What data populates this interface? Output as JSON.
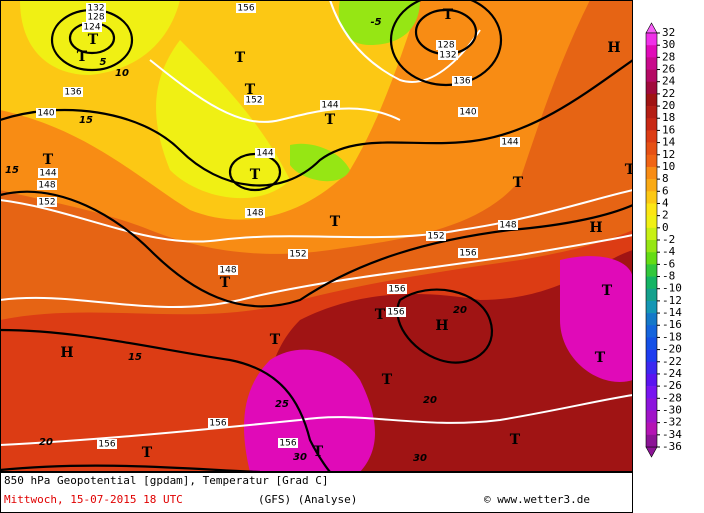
{
  "map": {
    "colorbar": {
      "ticks": [
        32,
        30,
        28,
        26,
        24,
        22,
        20,
        18,
        16,
        14,
        12,
        10,
        8,
        6,
        4,
        2,
        0,
        -2,
        -4,
        -6,
        -8,
        -10,
        -12,
        -14,
        -16,
        -18,
        -20,
        -22,
        -24,
        -26,
        -28,
        -30,
        -32,
        -34,
        -36
      ],
      "colors": [
        "#f860f8",
        "#f030e8",
        "#e00ab8",
        "#c80a8c",
        "#b40a64",
        "#a00a3c",
        "#a01414",
        "#b41e14",
        "#c82814",
        "#dc3c14",
        "#e65014",
        "#f06414",
        "#f88c14",
        "#faaa14",
        "#fcc814",
        "#fce614",
        "#f0f014",
        "#c8f014",
        "#96e614",
        "#64dc14",
        "#32c83c",
        "#14b464",
        "#14a08c",
        "#1496b4",
        "#1478c8",
        "#1464dc",
        "#1450e6",
        "#1e3cf0",
        "#3c28f0",
        "#5a14f0",
        "#7814f0",
        "#8c14dc",
        "#a014c8",
        "#b414b4",
        "#8c1496"
      ]
    },
    "labels": [
      "132",
      "128",
      "124",
      "T",
      "T",
      "10",
      "5",
      "136",
      "140",
      "15",
      "T",
      "144",
      "148",
      "152",
      "15",
      "156",
      "T",
      "T",
      "152",
      "144",
      "T",
      "144",
      "T",
      "148",
      "T",
      "T",
      "148",
      "152",
      "152",
      "148",
      "156",
      "H",
      "H",
      "T",
      "T",
      "128",
      "132",
      "136",
      "140",
      "144",
      "-5",
      "156",
      "156",
      "H",
      "T",
      "20",
      "T",
      "T",
      "T",
      "156",
      "T",
      "30",
      "25",
      "H",
      "20",
      "15",
      "T",
      "T",
      "T",
      "20",
      "156",
      "156",
      "30",
      "T"
    ],
    "footer": {
      "title": "850 hPa Geopotential [gpdam], Temperatur [Grad C]",
      "date": "Mittwoch, 15-07-2015  18 UTC",
      "model": "(GFS)  (Analyse)",
      "credit": "© www.wetter3.de"
    }
  }
}
